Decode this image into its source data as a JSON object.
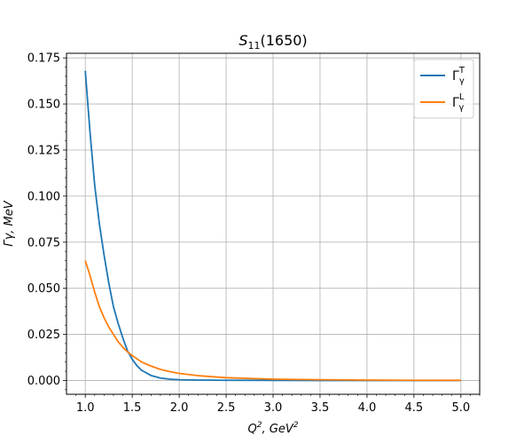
{
  "chart_data": {
    "type": "line",
    "title_base": "S",
    "title_sub": "11",
    "title_rest": "(1650)",
    "xlabel_base": "Q",
    "xlabel_sup": "2",
    "xlabel_mid": ", GeV",
    "xlabel_sup2": "2",
    "ylabel": "Γγ, MeV",
    "xlim": [
      0.8,
      5.2
    ],
    "ylim": [
      -0.0075,
      0.1775
    ],
    "xticks": [
      "1.0",
      "1.5",
      "2.0",
      "2.5",
      "3.0",
      "3.5",
      "4.0",
      "4.5",
      "5.0"
    ],
    "yticks": [
      "0.000",
      "0.025",
      "0.050",
      "0.075",
      "0.100",
      "0.125",
      "0.150",
      "0.175"
    ],
    "grid": true,
    "legend_position": "top-right",
    "series": [
      {
        "name_base": "Γ",
        "name_sub": "γ",
        "name_sup": "T",
        "color": "#1f77b4",
        "x": [
          1.0,
          1.05,
          1.1,
          1.15,
          1.2,
          1.25,
          1.3,
          1.35,
          1.4,
          1.45,
          1.5,
          1.55,
          1.6,
          1.7,
          1.8,
          1.9,
          2.0,
          2.2,
          2.5,
          3.0,
          3.5,
          4.0,
          4.5,
          5.0
        ],
        "y": [
          0.168,
          0.135,
          0.106,
          0.085,
          0.068,
          0.053,
          0.04,
          0.031,
          0.023,
          0.016,
          0.0115,
          0.008,
          0.0055,
          0.0027,
          0.0013,
          0.0007,
          0.0004,
          0.0002,
          0.0001,
          5e-05,
          0.0,
          0.0,
          0.0,
          0.0
        ]
      },
      {
        "name_base": "Γ",
        "name_sub": "γ",
        "name_sup": "L",
        "color": "#ff7f0e",
        "x": [
          1.0,
          1.05,
          1.1,
          1.15,
          1.2,
          1.25,
          1.3,
          1.35,
          1.4,
          1.45,
          1.5,
          1.6,
          1.7,
          1.8,
          1.9,
          2.0,
          2.2,
          2.5,
          3.0,
          3.5,
          4.0,
          4.5,
          5.0
        ],
        "y": [
          0.065,
          0.057,
          0.048,
          0.04,
          0.034,
          0.029,
          0.025,
          0.021,
          0.018,
          0.0155,
          0.0135,
          0.01,
          0.0078,
          0.006,
          0.0048,
          0.0038,
          0.0026,
          0.0015,
          0.0007,
          0.0004,
          0.0002,
          0.0001,
          5e-05
        ]
      }
    ]
  }
}
